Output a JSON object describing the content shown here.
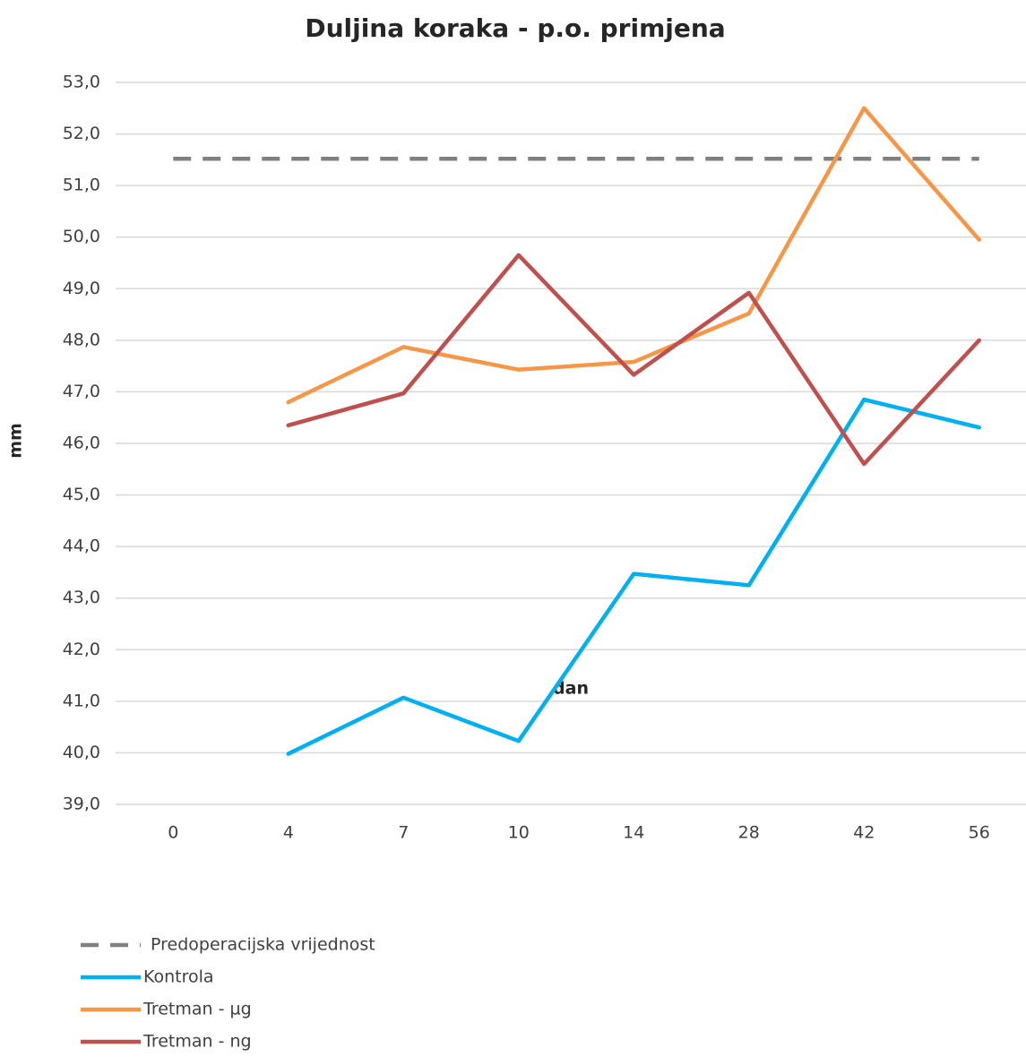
{
  "chart_data": {
    "type": "line",
    "title": "Duljina koraka - p.o. primjena",
    "x_label": "dan",
    "y_label": "mm",
    "categories": [
      "0",
      "4",
      "7",
      "10",
      "14",
      "28",
      "42",
      "56"
    ],
    "series": [
      {
        "name": "Predoperacijska vrijednost",
        "color": "#808080",
        "dashed": true,
        "values": [
          51.52,
          51.52,
          51.52,
          51.52,
          51.52,
          51.52,
          51.52,
          51.52
        ]
      },
      {
        "name": "Kontrola",
        "color": "#00b0f0",
        "values": [
          null,
          39.98,
          41.07,
          40.23,
          43.47,
          43.25,
          46.85,
          46.31
        ]
      },
      {
        "name": "Tretman - µg",
        "color": "#f79646",
        "values": [
          null,
          46.8,
          47.87,
          47.43,
          47.58,
          48.52,
          52.5,
          49.95
        ]
      },
      {
        "name": "Tretman - ng",
        "color": "#c0504d",
        "values": [
          null,
          46.35,
          46.97,
          49.65,
          47.33,
          48.92,
          45.6,
          48.0
        ]
      }
    ],
    "ylim": [
      39,
      53
    ],
    "yticks": [
      {
        "value": 39,
        "label": "39,0"
      },
      {
        "value": 40,
        "label": "40,0"
      },
      {
        "value": 41,
        "label": "41,0"
      },
      {
        "value": 42,
        "label": "42,0"
      },
      {
        "value": 43,
        "label": "43,0"
      },
      {
        "value": 44,
        "label": "44,0"
      },
      {
        "value": 45,
        "label": "45,0"
      },
      {
        "value": 46,
        "label": "46,0"
      },
      {
        "value": 47,
        "label": "47,0"
      },
      {
        "value": 48,
        "label": "48,0"
      },
      {
        "value": 49,
        "label": "49,0"
      },
      {
        "value": 50,
        "label": "50,0"
      },
      {
        "value": 51,
        "label": "51,0"
      },
      {
        "value": 52,
        "label": "52,0"
      },
      {
        "value": 53,
        "label": "53,0"
      }
    ],
    "grid": true,
    "legend": "bottom-left"
  }
}
